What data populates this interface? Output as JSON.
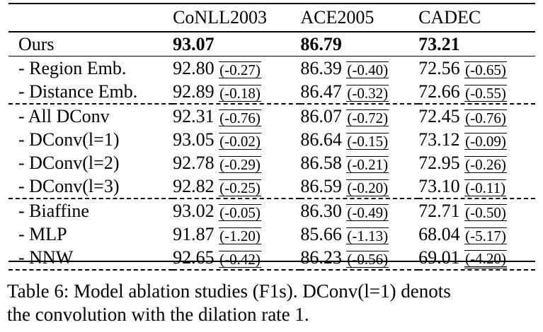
{
  "table": {
    "headers": [
      "",
      "CoNLL2003",
      "ACE2005",
      "CADEC"
    ],
    "ours": {
      "label": "Ours",
      "values": [
        "93.07",
        "86.79",
        "73.21"
      ]
    },
    "rows": [
      {
        "label": "- Region Emb.",
        "values": [
          "92.80",
          "86.39",
          "72.56"
        ],
        "deltas": [
          "(-0.27)",
          "(-0.40)",
          "(-0.65)"
        ]
      },
      {
        "label": "- Distance Emb.",
        "values": [
          "92.89",
          "86.47",
          "72.66"
        ],
        "deltas": [
          "(-0.18)",
          "(-0.32)",
          "(-0.55)"
        ]
      },
      {
        "label": "- All DConv",
        "values": [
          "92.31",
          "86.07",
          "72.45"
        ],
        "deltas": [
          "(-0.76)",
          "(-0.72)",
          "(-0.76)"
        ]
      },
      {
        "label": "- DConv(l=1)",
        "values": [
          "93.05",
          "86.64",
          "73.12"
        ],
        "deltas": [
          "(-0.02)",
          "(-0.15)",
          "(-0.09)"
        ]
      },
      {
        "label": "- DConv(l=2)",
        "values": [
          "92.78",
          "86.58",
          "72.95"
        ],
        "deltas": [
          "(-0.29)",
          "(-0.21)",
          "(-0.26)"
        ]
      },
      {
        "label": "- DConv(l=3)",
        "values": [
          "92.82",
          "86.59",
          "73.10"
        ],
        "deltas": [
          "(-0.25)",
          "(-0.20)",
          "(-0.11)"
        ]
      },
      {
        "label": "- Biaffine",
        "values": [
          "93.02",
          "86.30",
          "72.71"
        ],
        "deltas": [
          "(-0.05)",
          "(-0.49)",
          "(-0.50)"
        ]
      },
      {
        "label": "- MLP",
        "values": [
          "91.87",
          "85.66",
          "68.04"
        ],
        "deltas": [
          "(-1.20)",
          "(-1.13)",
          "(-5.17)"
        ]
      },
      {
        "label": "- NNW",
        "values": [
          "92.65",
          "86.23",
          "69.01"
        ],
        "deltas": [
          "(-0.42)",
          "(-0.56)",
          "(-4.20)"
        ]
      }
    ]
  },
  "caption": {
    "line1": "Table 6: Model ablation studies (F1s). DConv(l=1) denots",
    "line2": "the convolution with the dilation rate 1."
  }
}
